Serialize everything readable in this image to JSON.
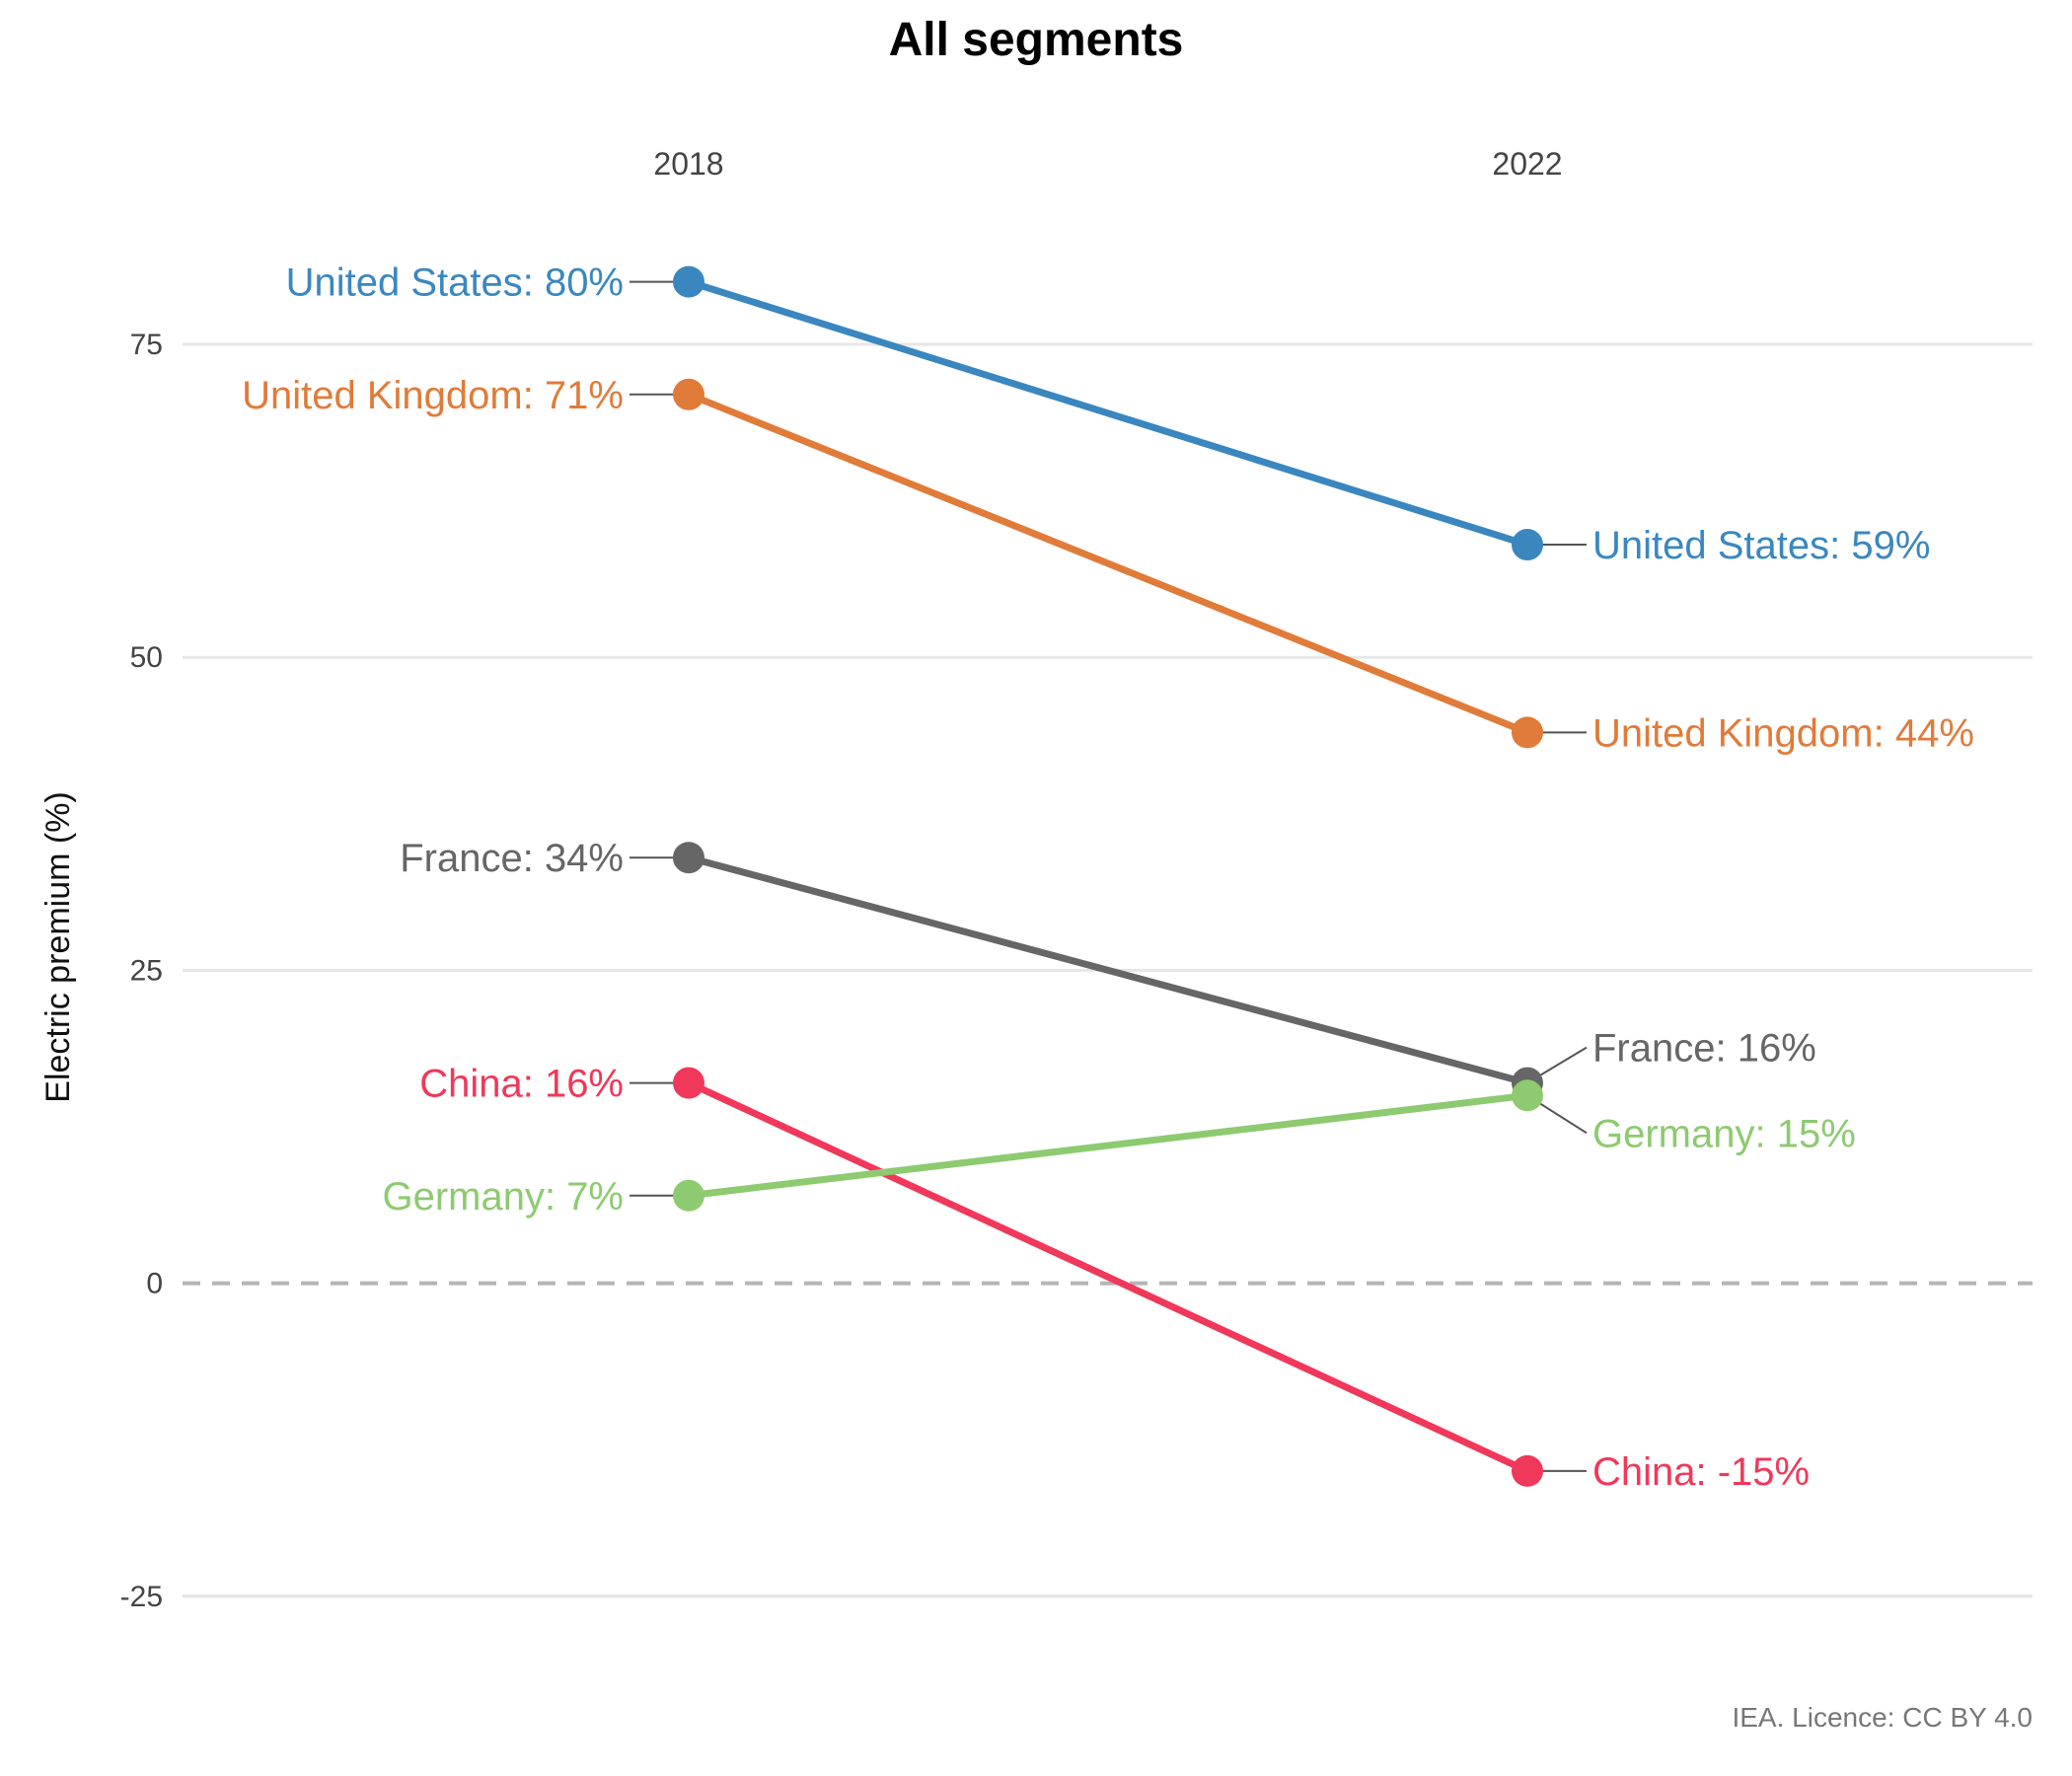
{
  "chart_data": {
    "type": "line",
    "title": "All segments",
    "xlabel": "",
    "ylabel": "Electric premium (%)",
    "x": [
      "2018",
      "2022"
    ],
    "yticks": [
      "75",
      "50",
      "25",
      "0",
      "-25"
    ],
    "ylim": [
      -37,
      94
    ],
    "grid": true,
    "zero_line": "dashed",
    "series": [
      {
        "name": "United States",
        "values": [
          80,
          59
        ],
        "color": "#3a87c0",
        "labels": [
          "United States: 80%",
          "United States: 59%"
        ]
      },
      {
        "name": "United Kingdom",
        "values": [
          71,
          44
        ],
        "color": "#e07b3a",
        "labels": [
          "United Kingdom: 71%",
          "United Kingdom: 44%"
        ]
      },
      {
        "name": "France",
        "values": [
          34,
          16
        ],
        "color": "#666666",
        "labels": [
          "France: 34%",
          "France: 16%"
        ]
      },
      {
        "name": "China",
        "values": [
          16,
          -15
        ],
        "color": "#f0385a",
        "labels": [
          "China: 16%",
          "China: -15%"
        ]
      },
      {
        "name": "Germany",
        "values": [
          7,
          15
        ],
        "color": "#8dca70",
        "labels": [
          "Germany: 7%",
          "Germany: 15%"
        ]
      }
    ],
    "source": "IEA. Licence: CC BY 4.0"
  }
}
